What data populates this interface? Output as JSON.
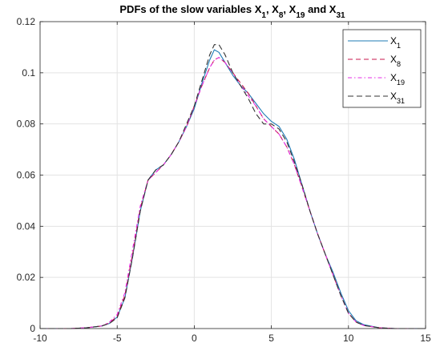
{
  "chart_data": {
    "type": "line",
    "title": {
      "parts": [
        {
          "text": "PDFs of the slow variables X",
          "sub": false
        },
        {
          "text": "1",
          "sub": true
        },
        {
          "text": ", X",
          "sub": false
        },
        {
          "text": "8",
          "sub": true
        },
        {
          "text": ", X",
          "sub": false
        },
        {
          "text": "19",
          "sub": true
        },
        {
          "text": " and X",
          "sub": false
        },
        {
          "text": "31",
          "sub": true
        }
      ]
    },
    "xlabel": "",
    "ylabel": "",
    "xlim": [
      -10,
      15
    ],
    "ylim": [
      0,
      0.12
    ],
    "x_ticks": [
      -10,
      -5,
      0,
      5,
      10,
      15
    ],
    "x_tick_labels": [
      "-10",
      "-5",
      "0",
      "5",
      "10",
      "15"
    ],
    "y_ticks": [
      0,
      0.02,
      0.04,
      0.06,
      0.08,
      0.1,
      0.12
    ],
    "y_tick_labels": [
      "0",
      "0.02",
      "0.04",
      "0.06",
      "0.08",
      "0.1",
      "0.12"
    ],
    "grid": true,
    "legend_position": "top-right",
    "series": [
      {
        "name": "X1",
        "legend_base": "X",
        "legend_sub": "1",
        "color": "#1f7bb6",
        "dash": "solid",
        "x": [
          -10,
          -8,
          -7,
          -6,
          -5.5,
          -5,
          -4.5,
          -4,
          -3.5,
          -3,
          -2.5,
          -2,
          -1.5,
          -1,
          -0.5,
          0,
          0.5,
          1,
          1.3,
          1.6,
          2,
          2.5,
          3,
          3.5,
          4,
          4.5,
          5,
          5.5,
          6,
          6.5,
          7,
          7.5,
          8,
          8.5,
          9,
          9.5,
          10,
          10.5,
          11,
          12,
          13,
          15
        ],
        "y": [
          0,
          0,
          0.0003,
          0.001,
          0.002,
          0.0045,
          0.012,
          0.028,
          0.046,
          0.058,
          0.062,
          0.064,
          0.068,
          0.073,
          0.079,
          0.086,
          0.096,
          0.105,
          0.109,
          0.108,
          0.104,
          0.099,
          0.095,
          0.092,
          0.088,
          0.084,
          0.081,
          0.079,
          0.074,
          0.066,
          0.056,
          0.046,
          0.037,
          0.029,
          0.022,
          0.014,
          0.007,
          0.003,
          0.0015,
          0.0003,
          0,
          0
        ]
      },
      {
        "name": "X8",
        "legend_base": "X",
        "legend_sub": "8",
        "color": "#c8174d",
        "dash": "6,4",
        "x": [
          -10,
          -8,
          -7,
          -6,
          -5.5,
          -5,
          -4.5,
          -4,
          -3.5,
          -3,
          -2.5,
          -2,
          -1.5,
          -1,
          -0.5,
          0,
          0.5,
          1,
          1.3,
          1.6,
          2,
          2.5,
          3,
          3.5,
          4,
          4.5,
          5,
          5.5,
          6,
          6.5,
          7,
          7.5,
          8,
          8.5,
          9,
          9.5,
          10,
          10.5,
          11,
          12,
          13,
          15
        ],
        "y": [
          0,
          0,
          0.0003,
          0.001,
          0.0022,
          0.0048,
          0.013,
          0.029,
          0.047,
          0.058,
          0.061,
          0.064,
          0.068,
          0.073,
          0.079,
          0.087,
          0.095,
          0.102,
          0.105,
          0.106,
          0.104,
          0.1,
          0.096,
          0.092,
          0.087,
          0.082,
          0.079,
          0.076,
          0.071,
          0.064,
          0.055,
          0.046,
          0.037,
          0.029,
          0.021,
          0.013,
          0.006,
          0.0025,
          0.0012,
          0.0003,
          0,
          0
        ]
      },
      {
        "name": "X19",
        "legend_base": "X",
        "legend_sub": "19",
        "color": "#e62ee6",
        "dash": "5,3,1.5,3",
        "x": [
          -10,
          -8,
          -7,
          -6,
          -5.5,
          -5,
          -4.5,
          -4,
          -3.5,
          -3,
          -2.5,
          -2,
          -1.5,
          -1,
          -0.5,
          0,
          0.5,
          1,
          1.3,
          1.6,
          2,
          2.5,
          3,
          3.5,
          4,
          4.5,
          5,
          5.5,
          6,
          6.5,
          7,
          7.5,
          8,
          8.5,
          9,
          9.5,
          10,
          10.5,
          11,
          12,
          13,
          15
        ],
        "y": [
          0,
          0,
          0.0003,
          0.001,
          0.0025,
          0.0055,
          0.014,
          0.031,
          0.048,
          0.058,
          0.061,
          0.064,
          0.068,
          0.073,
          0.079,
          0.087,
          0.095,
          0.102,
          0.105,
          0.106,
          0.104,
          0.1,
          0.095,
          0.091,
          0.087,
          0.082,
          0.079,
          0.076,
          0.071,
          0.064,
          0.055,
          0.046,
          0.037,
          0.029,
          0.021,
          0.013,
          0.006,
          0.0025,
          0.0012,
          0.0003,
          0,
          0
        ]
      },
      {
        "name": "X31",
        "legend_base": "X",
        "legend_sub": "31",
        "color": "#333333",
        "dash": "7,4",
        "x": [
          -10,
          -8,
          -7,
          -6,
          -5.5,
          -5,
          -4.5,
          -4,
          -3.5,
          -3,
          -2.5,
          -2,
          -1.5,
          -1,
          -0.5,
          0,
          0.5,
          1,
          1.3,
          1.6,
          2,
          2.5,
          3,
          3.5,
          4,
          4.5,
          5,
          5.5,
          6,
          6.5,
          7,
          7.5,
          8,
          8.5,
          9,
          9.5,
          10,
          10.5,
          11,
          12,
          13,
          15
        ],
        "y": [
          0,
          0,
          0.0003,
          0.001,
          0.002,
          0.0042,
          0.012,
          0.028,
          0.046,
          0.058,
          0.062,
          0.064,
          0.068,
          0.073,
          0.08,
          0.087,
          0.097,
          0.107,
          0.111,
          0.111,
          0.107,
          0.1,
          0.095,
          0.09,
          0.084,
          0.08,
          0.08,
          0.078,
          0.073,
          0.065,
          0.056,
          0.046,
          0.037,
          0.029,
          0.021,
          0.013,
          0.006,
          0.0025,
          0.0012,
          0.0003,
          0,
          0
        ]
      }
    ]
  }
}
